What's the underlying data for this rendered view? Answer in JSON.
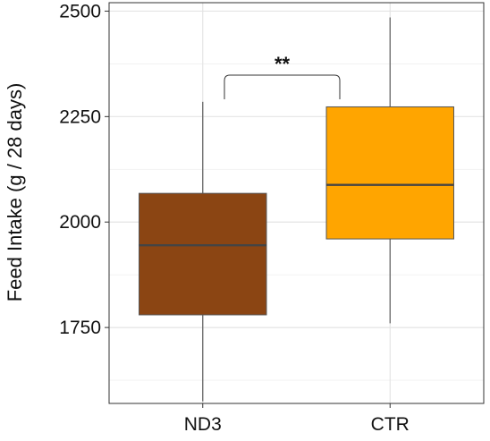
{
  "chart_data": {
    "type": "box",
    "title": "",
    "xlabel": "",
    "ylabel": "Feed Intake (g / 28 days)",
    "ylim": [
      1570,
      2520
    ],
    "yticks": [
      1750,
      2000,
      2250,
      2500
    ],
    "grid": true,
    "categories": [
      "ND3",
      "CTR"
    ],
    "colors": [
      "#8B4513",
      "#FFA500"
    ],
    "boxes": [
      {
        "category": "ND3",
        "min": 1575,
        "q1": 1780,
        "median": 1945,
        "q3": 2068,
        "max": 2285
      },
      {
        "category": "CTR",
        "min": 1760,
        "q1": 1960,
        "median": 2088,
        "q3": 2273,
        "max": 2485
      }
    ],
    "annotation": {
      "text": "**",
      "between": [
        "ND3",
        "CTR"
      ]
    }
  }
}
